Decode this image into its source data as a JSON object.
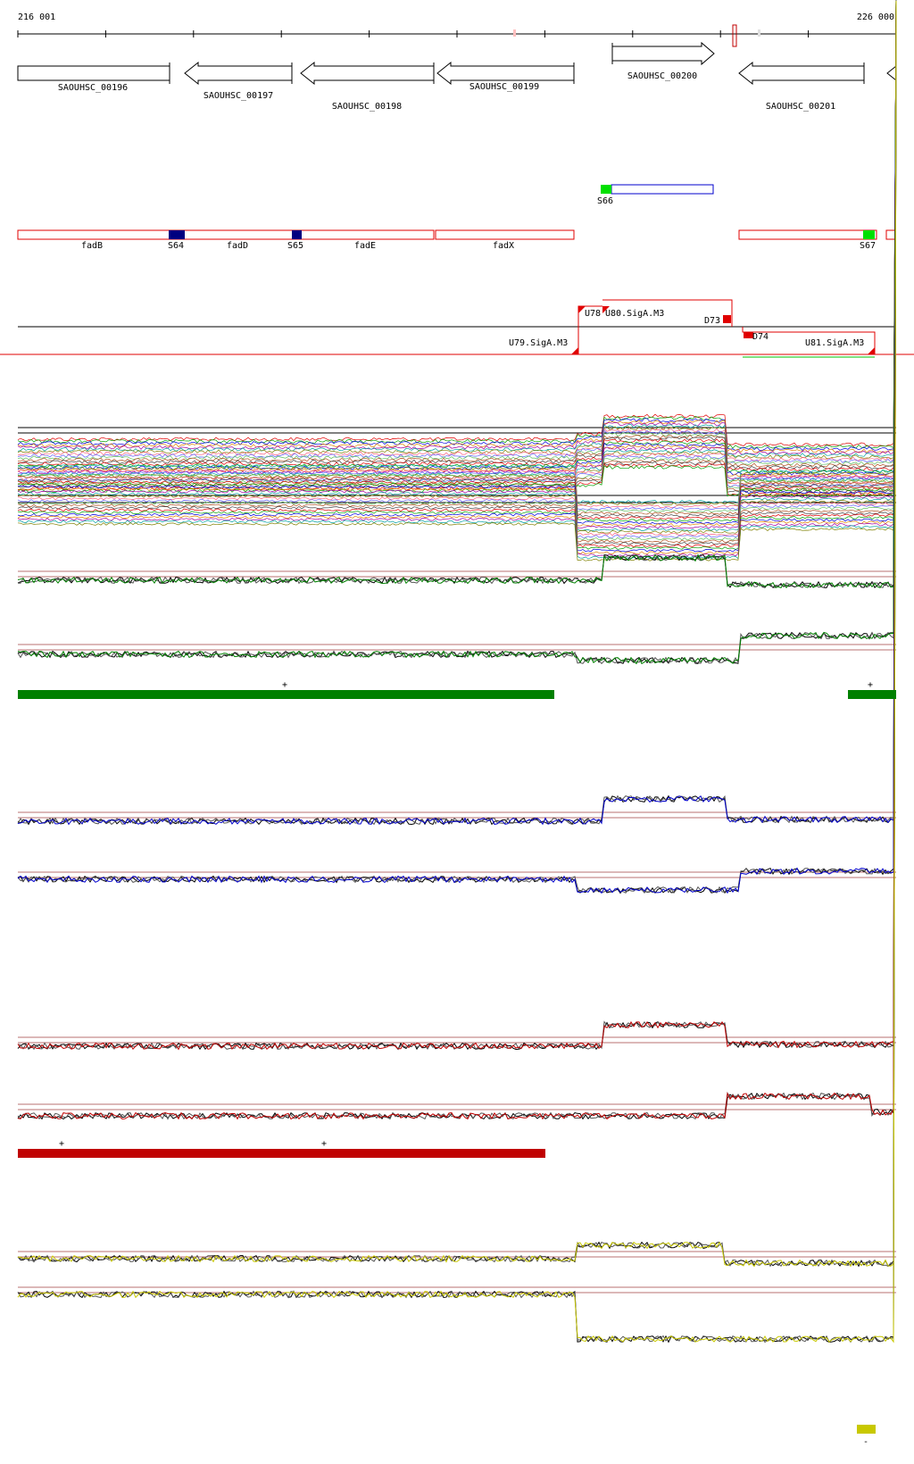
{
  "axis": {
    "start_label": "216 001",
    "end_label": "226 000"
  },
  "genes": [
    {
      "name": "SAOUHSC_00196",
      "strand": "+"
    },
    {
      "name": "SAOUHSC_00197",
      "strand": "-"
    },
    {
      "name": "SAOUHSC_00198",
      "strand": "-"
    },
    {
      "name": "SAOUHSC_00199",
      "strand": "-"
    },
    {
      "name": "SAOUHSC_00200",
      "strand": "+"
    },
    {
      "name": "SAOUHSC_00201",
      "strand": "-"
    }
  ],
  "segments": [
    {
      "label": "S66",
      "color": "#00e000"
    },
    {
      "label": "S64",
      "color": "#000080"
    },
    {
      "label": "S65",
      "color": "#000080"
    },
    {
      "label": "S67",
      "color": "#00e000"
    }
  ],
  "operons": [
    {
      "label": "fadB"
    },
    {
      "label": "fadD"
    },
    {
      "label": "fadE"
    },
    {
      "label": "fadX"
    }
  ],
  "boundaries": [
    {
      "label": "U78"
    },
    {
      "label": "U80.SigA.M3"
    },
    {
      "label": "D73"
    },
    {
      "label": "D74"
    },
    {
      "label": "U79.SigA.M3"
    },
    {
      "label": "U81.SigA.M3"
    }
  ],
  "panels": [
    {
      "color": "#008000",
      "marks": [
        "+",
        "+"
      ]
    },
    {
      "color": "#0000cc",
      "marks": []
    },
    {
      "color": "#c00000",
      "marks": [
        "+",
        "+"
      ]
    },
    {
      "color": "#c8c800",
      "marks": [
        "-"
      ]
    }
  ]
}
